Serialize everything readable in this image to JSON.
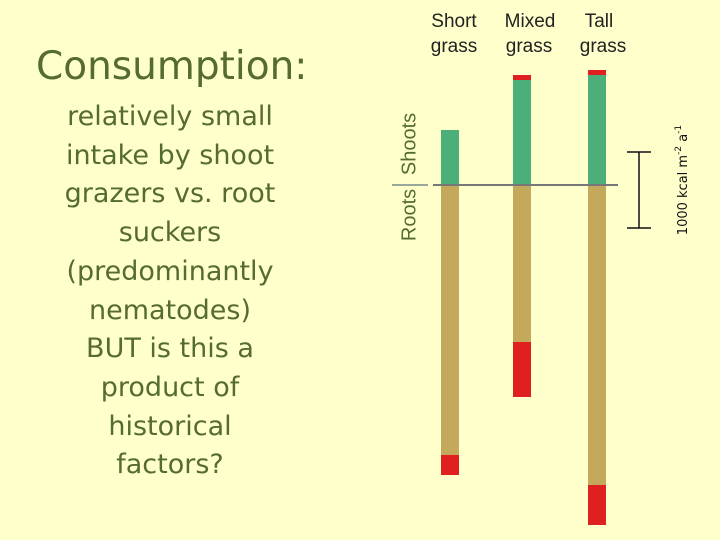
{
  "slide": {
    "title": "Consumption:",
    "body_lines": [
      "relatively small",
      "intake by shoot",
      "grazers vs. root",
      "suckers",
      "(predominantly",
      "nematodes)",
      "BUT is this a",
      "product of",
      "historical",
      "factors?"
    ]
  },
  "diagram": {
    "columns": [
      {
        "line1": "Short",
        "line2": "grass",
        "shoot_total": 55,
        "shoot_consumed": 0,
        "root_total": 290,
        "root_consumed": 20
      },
      {
        "line1": "Mixed",
        "line2": "grass",
        "shoot_total": 110,
        "shoot_consumed": 5,
        "root_total": 212,
        "root_consumed": 55
      },
      {
        "line1": "Tall",
        "line2": "grass",
        "shoot_total": 115,
        "shoot_consumed": 5,
        "root_total": 340,
        "root_consumed": 40
      }
    ],
    "side_labels": {
      "roots": "Roots",
      "shoots": "Shoots"
    },
    "scale_bar": {
      "label": "1000 kcal m",
      "sup1": "-2",
      "mid": " a",
      "sup2": "-1",
      "value": 1000
    },
    "colors": {
      "background": "#ffffcc",
      "shoot": "#4caf7a",
      "root": "#c4a95c",
      "consumed": "#e02020",
      "text": "#556b2f"
    }
  }
}
